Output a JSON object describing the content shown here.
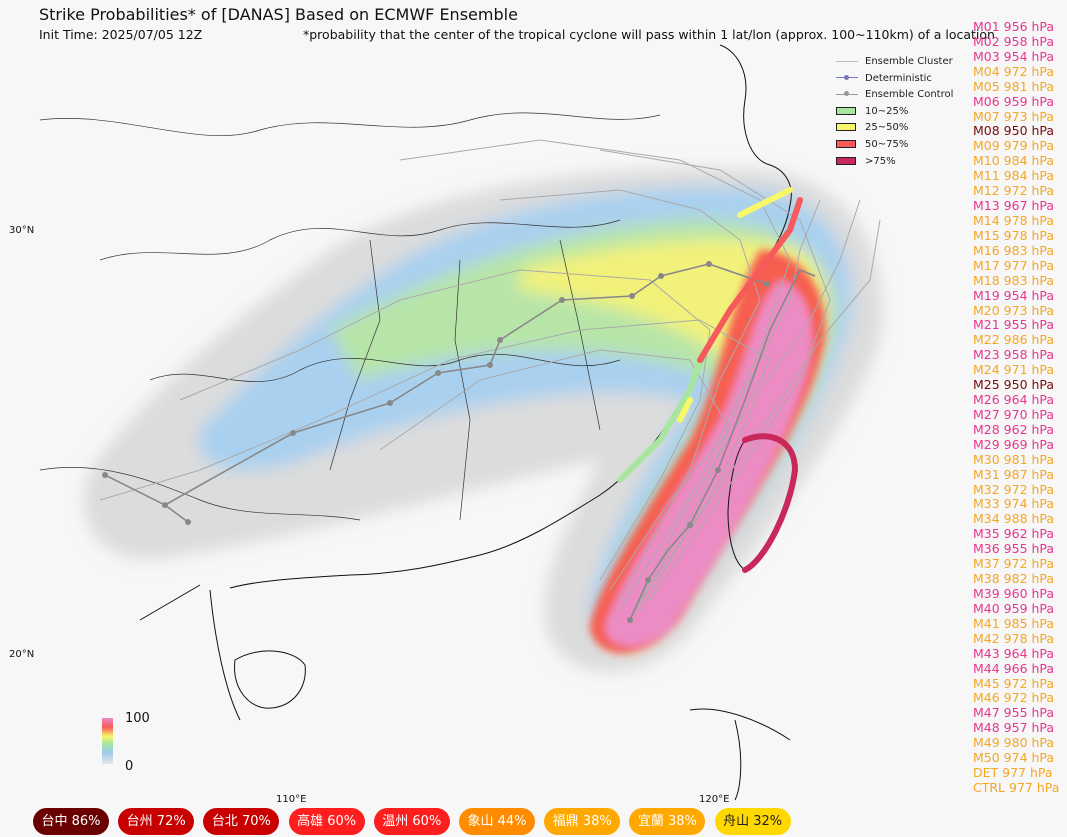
{
  "header": {
    "title": "Strike Probabilities* of [DANAS] Based on ECMWF Ensemble",
    "init_time": "Init Time: 2025/07/05 12Z",
    "footnote": "*probability that the center of the tropical cyclone will pass within 1 lat/lon (approx. 100~110km) of a location"
  },
  "legend": [
    {
      "label": "Ensemble Cluster",
      "style": "line",
      "color": "#bbbbbb"
    },
    {
      "label": "Deterministic",
      "style": "dot-line",
      "color": "#7777bb"
    },
    {
      "label": "Ensemble Control",
      "style": "dot-line",
      "color": "#999999"
    },
    {
      "label": "10~25%",
      "style": "box",
      "color": "#a8e6a0"
    },
    {
      "label": "25~50%",
      "style": "box",
      "color": "#f7f76a"
    },
    {
      "label": "50~75%",
      "style": "box",
      "color": "#f75a5a"
    },
    {
      "label": ">75%",
      "style": "box",
      "color": "#c8285a"
    }
  ],
  "axis_labels": {
    "lat": [
      "30°N",
      "20°N"
    ],
    "lon": [
      "110°E",
      "120°E"
    ]
  },
  "colorbar": {
    "max": "100",
    "min": "0"
  },
  "members": [
    {
      "label": "M01 956 hPa",
      "color": "#e8358f"
    },
    {
      "label": "M02 958 hPa",
      "color": "#e8358f"
    },
    {
      "label": "M03 954 hPa",
      "color": "#e8358f"
    },
    {
      "label": "M04 972 hPa",
      "color": "#f5a623"
    },
    {
      "label": "M05 981 hPa",
      "color": "#f5a623"
    },
    {
      "label": "M06 959 hPa",
      "color": "#e8358f"
    },
    {
      "label": "M07 973 hPa",
      "color": "#f5a623"
    },
    {
      "label": "M08 950 hPa",
      "color": "#7a0a0a"
    },
    {
      "label": "M09 979 hPa",
      "color": "#f5a623"
    },
    {
      "label": "M10 984 hPa",
      "color": "#f5a623"
    },
    {
      "label": "M11 984 hPa",
      "color": "#f5a623"
    },
    {
      "label": "M12 972 hPa",
      "color": "#f5a623"
    },
    {
      "label": "M13 967 hPa",
      "color": "#e8358f"
    },
    {
      "label": "M14 978 hPa",
      "color": "#f5a623"
    },
    {
      "label": "M15 978 hPa",
      "color": "#f5a623"
    },
    {
      "label": "M16 983 hPa",
      "color": "#f5a623"
    },
    {
      "label": "M17 977 hPa",
      "color": "#f5a623"
    },
    {
      "label": "M18 983 hPa",
      "color": "#f5a623"
    },
    {
      "label": "M19 954 hPa",
      "color": "#e8358f"
    },
    {
      "label": "M20 973 hPa",
      "color": "#f5a623"
    },
    {
      "label": "M21 955 hPa",
      "color": "#e8358f"
    },
    {
      "label": "M22 986 hPa",
      "color": "#f5a623"
    },
    {
      "label": "M23 958 hPa",
      "color": "#e8358f"
    },
    {
      "label": "M24 971 hPa",
      "color": "#f5a623"
    },
    {
      "label": "M25 950 hPa",
      "color": "#7a0a0a"
    },
    {
      "label": "M26 964 hPa",
      "color": "#e8358f"
    },
    {
      "label": "M27 970 hPa",
      "color": "#e8358f"
    },
    {
      "label": "M28 962 hPa",
      "color": "#e8358f"
    },
    {
      "label": "M29 969 hPa",
      "color": "#e8358f"
    },
    {
      "label": "M30 981 hPa",
      "color": "#f5a623"
    },
    {
      "label": "M31 987 hPa",
      "color": "#f5a623"
    },
    {
      "label": "M32 972 hPa",
      "color": "#f5a623"
    },
    {
      "label": "M33 974 hPa",
      "color": "#f5a623"
    },
    {
      "label": "M34 988 hPa",
      "color": "#f5a623"
    },
    {
      "label": "M35 962 hPa",
      "color": "#e8358f"
    },
    {
      "label": "M36 955 hPa",
      "color": "#e8358f"
    },
    {
      "label": "M37 972 hPa",
      "color": "#f5a623"
    },
    {
      "label": "M38 982 hPa",
      "color": "#f5a623"
    },
    {
      "label": "M39 960 hPa",
      "color": "#e8358f"
    },
    {
      "label": "M40 959 hPa",
      "color": "#e8358f"
    },
    {
      "label": "M41 985 hPa",
      "color": "#f5a623"
    },
    {
      "label": "M42 978 hPa",
      "color": "#f5a623"
    },
    {
      "label": "M43 964 hPa",
      "color": "#e8358f"
    },
    {
      "label": "M44 966 hPa",
      "color": "#e8358f"
    },
    {
      "label": "M45 972 hPa",
      "color": "#f5a623"
    },
    {
      "label": "M46 972 hPa",
      "color": "#f5a623"
    },
    {
      "label": "M47 955 hPa",
      "color": "#e8358f"
    },
    {
      "label": "M48 957 hPa",
      "color": "#e8358f"
    },
    {
      "label": "M49 980 hPa",
      "color": "#f5a623"
    },
    {
      "label": "M50 974 hPa",
      "color": "#f5a623"
    },
    {
      "label": "DET 977 hPa",
      "color": "#f5a623"
    },
    {
      "label": "CTRL 977 hPa",
      "color": "#f5a623"
    }
  ],
  "cities": [
    {
      "label": "台中 86%",
      "color": "#6b0000",
      "text_color": "#ffffff"
    },
    {
      "label": "台州 72%",
      "color": "#c80000",
      "text_color": "#ffffff"
    },
    {
      "label": "台北 70%",
      "color": "#c80000",
      "text_color": "#ffffff"
    },
    {
      "label": "高雄 60%",
      "color": "#ff1e1e",
      "text_color": "#ffffff"
    },
    {
      "label": "温州 60%",
      "color": "#ff1e1e",
      "text_color": "#ffffff"
    },
    {
      "label": "象山 44%",
      "color": "#ff8c00",
      "text_color": "#ffffff"
    },
    {
      "label": "福鼎 38%",
      "color": "#ffa800",
      "text_color": "#ffffff"
    },
    {
      "label": "宜蘭 38%",
      "color": "#ffa800",
      "text_color": "#ffffff"
    },
    {
      "label": "舟山 32%",
      "color": "#ffd800",
      "text_color": "#222222"
    }
  ]
}
